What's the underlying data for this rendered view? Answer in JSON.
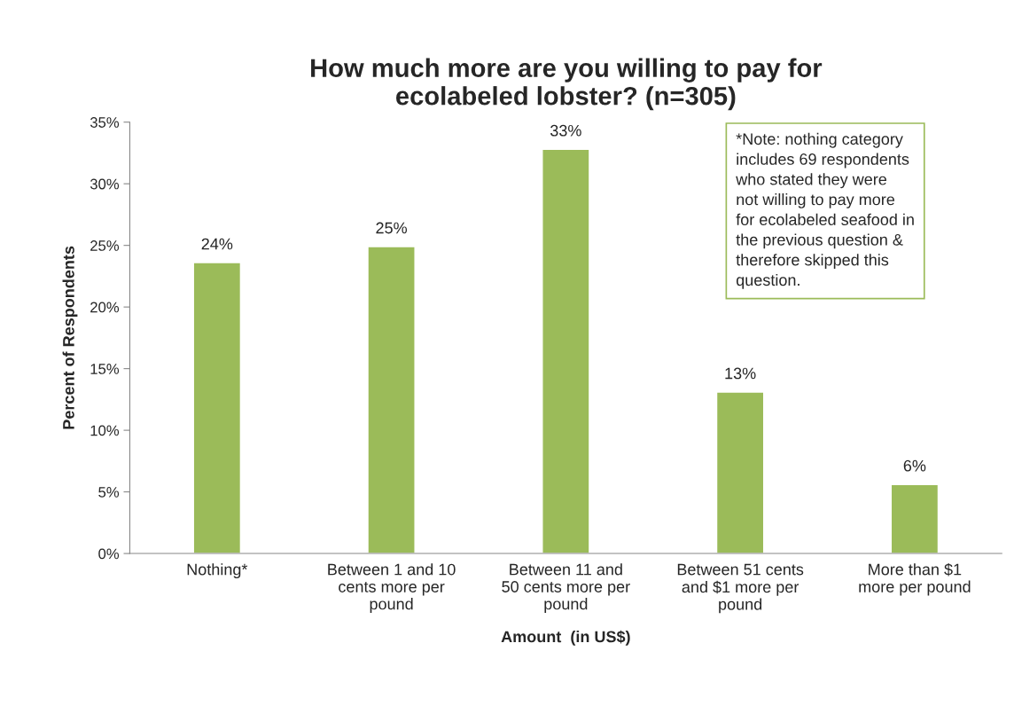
{
  "chart_data": {
    "type": "bar",
    "title": "How much more are you willing to pay for\necolabeled lobster? (n=305)",
    "xlabel": "Amount  (in US$)",
    "ylabel": "Percent of Respondents",
    "categories": [
      "Nothing*",
      "Between 1 and 10\ncents more per\npound",
      "Between 11 and\n50 cents more per\npound",
      "Between 51 cents\nand $1 more per\npound",
      "More than $1\nmore per pound"
    ],
    "values": [
      23.6,
      24.9,
      32.8,
      13.1,
      5.6
    ],
    "value_labels": [
      "24%",
      "25%",
      "33%",
      "13%",
      "6%"
    ],
    "color": "#9bbb59",
    "ylim": [
      0,
      35
    ],
    "yticks": [
      {
        "value": 0,
        "label": "0%"
      },
      {
        "value": 5,
        "label": "5%"
      },
      {
        "value": 10,
        "label": "10%"
      },
      {
        "value": 15,
        "label": "15%"
      },
      {
        "value": 20,
        "label": "20%"
      },
      {
        "value": 25,
        "label": "25%"
      },
      {
        "value": 30,
        "label": "30%"
      },
      {
        "value": 35,
        "label": "35%"
      }
    ],
    "grid": false,
    "legend": false,
    "annotations": [
      "*Note: nothing category\nincludes 69 respondents\nwho stated they were\nnot willing to pay more\nfor ecolabeled seafood in\nthe previous question &\ntherefore skipped this\nquestion."
    ]
  }
}
